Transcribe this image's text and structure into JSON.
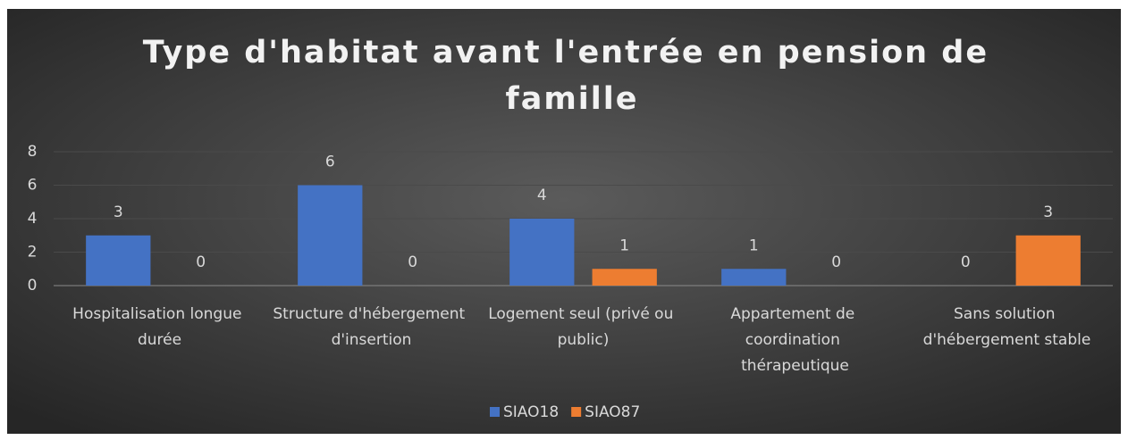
{
  "chart_data": {
    "type": "bar",
    "title": "Type d'habitat avant l'entrée en pension de famille",
    "categories": [
      "Hospitalisation longue durée",
      "Structure d'hébergement d'insertion",
      "Logement seul (privé ou public)",
      "Appartement de coordination thérapeutique",
      "Sans solution d'hébergement stable"
    ],
    "series": [
      {
        "name": "SIAO18",
        "color": "#4472c4",
        "values": [
          3,
          6,
          4,
          1,
          0
        ]
      },
      {
        "name": "SIAO87",
        "color": "#ed7d31",
        "values": [
          0,
          0,
          1,
          0,
          3
        ]
      }
    ],
    "ylim": [
      0,
      8
    ],
    "yticks": [
      0,
      2,
      4,
      6,
      8
    ],
    "grid": true,
    "legend": "bottom"
  }
}
